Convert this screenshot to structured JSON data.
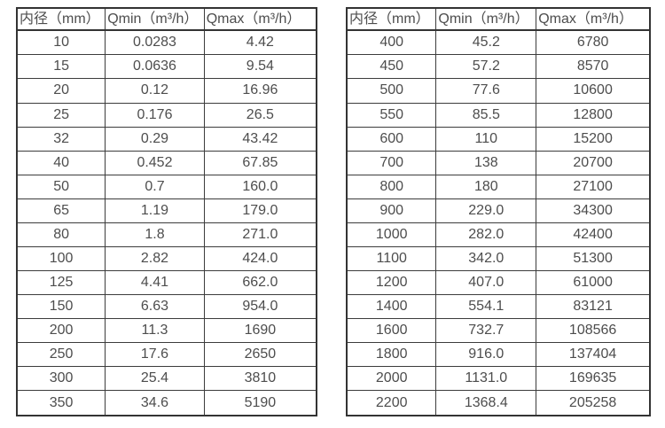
{
  "style": {
    "background_color": "#ffffff",
    "border_color": "#333333",
    "text_color": "#4d4d4d"
  },
  "tables": [
    {
      "name": "flow-spec-table-small-diameters",
      "headers": [
        "内径（mm）",
        "Qmin（m³/h）",
        "Qmax（m³/h）"
      ],
      "rows": [
        [
          "10",
          "0.0283",
          "4.42"
        ],
        [
          "15",
          "0.0636",
          "9.54"
        ],
        [
          "20",
          "0.12",
          "16.96"
        ],
        [
          "25",
          "0.176",
          "26.5"
        ],
        [
          "32",
          "0.29",
          "43.42"
        ],
        [
          "40",
          "0.452",
          "67.85"
        ],
        [
          "50",
          "0.7",
          "160.0"
        ],
        [
          "65",
          "1.19",
          "179.0"
        ],
        [
          "80",
          "1.8",
          "271.0"
        ],
        [
          "100",
          "2.82",
          "424.0"
        ],
        [
          "125",
          "4.41",
          "662.0"
        ],
        [
          "150",
          "6.63",
          "954.0"
        ],
        [
          "200",
          "11.3",
          "1690"
        ],
        [
          "250",
          "17.6",
          "2650"
        ],
        [
          "300",
          "25.4",
          "3810"
        ],
        [
          "350",
          "34.6",
          "5190"
        ]
      ]
    },
    {
      "name": "flow-spec-table-large-diameters",
      "headers": [
        "内径（mm）",
        "Qmin（m³/h）",
        "Qmax（m³/h）"
      ],
      "rows": [
        [
          "400",
          "45.2",
          "6780"
        ],
        [
          "450",
          "57.2",
          "8570"
        ],
        [
          "500",
          "77.6",
          "10600"
        ],
        [
          "550",
          "85.5",
          "12800"
        ],
        [
          "600",
          "110",
          "15200"
        ],
        [
          "700",
          "138",
          "20700"
        ],
        [
          "800",
          "180",
          "27100"
        ],
        [
          "900",
          "229.0",
          "34300"
        ],
        [
          "1000",
          "282.0",
          "42400"
        ],
        [
          "1100",
          "342.0",
          "51300"
        ],
        [
          "1200",
          "407.0",
          "61000"
        ],
        [
          "1400",
          "554.1",
          "83121"
        ],
        [
          "1600",
          "732.7",
          "108566"
        ],
        [
          "1800",
          "916.0",
          "137404"
        ],
        [
          "2000",
          "1131.0",
          "169635"
        ],
        [
          "2200",
          "1368.4",
          "205258"
        ]
      ]
    }
  ]
}
